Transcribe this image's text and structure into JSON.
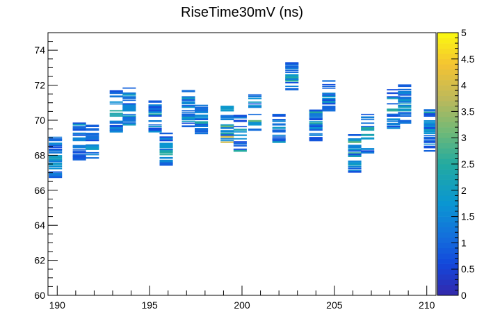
{
  "chart_data": {
    "type": "heatmap",
    "title": "RiseTime30mV (ns)",
    "xlabel": "",
    "ylabel": "",
    "xlim": [
      189.5,
      210.5
    ],
    "ylim": [
      60,
      75
    ],
    "x_ticks": [
      "190",
      "195",
      "200",
      "205",
      "210"
    ],
    "y_ticks": [
      "60",
      "62",
      "64",
      "66",
      "68",
      "70",
      "72",
      "74"
    ],
    "colorbar": {
      "zlim": [
        0,
        5
      ],
      "ticks": [
        "0",
        "0.5",
        "1",
        "1.5",
        "2",
        "2.5",
        "3",
        "3.5",
        "4",
        "4.5",
        "5"
      ]
    },
    "columns": [
      {
        "x": 189.9,
        "y_min": 66.7,
        "y_max": 69.0,
        "z_max": 2.5
      },
      {
        "x": 191.2,
        "y_min": 67.7,
        "y_max": 69.9,
        "z_max": 2.0
      },
      {
        "x": 191.9,
        "y_min": 67.8,
        "y_max": 69.6,
        "z_max": 2.5
      },
      {
        "x": 193.2,
        "y_min": 69.3,
        "y_max": 71.6,
        "z_max": 3.0
      },
      {
        "x": 193.9,
        "y_min": 69.7,
        "y_max": 71.8,
        "z_max": 2.0
      },
      {
        "x": 195.3,
        "y_min": 68.8,
        "y_max": 71.0,
        "z_max": 2.5
      },
      {
        "x": 195.9,
        "y_min": 67.4,
        "y_max": 69.2,
        "z_max": 2.5
      },
      {
        "x": 197.1,
        "y_min": 69.6,
        "y_max": 71.6,
        "z_max": 2.0
      },
      {
        "x": 197.8,
        "y_min": 69.0,
        "y_max": 70.8,
        "z_max": 2.5
      },
      {
        "x": 199.2,
        "y_min": 68.7,
        "y_max": 70.7,
        "z_max": 4.0
      },
      {
        "x": 199.9,
        "y_min": 68.2,
        "y_max": 70.3,
        "z_max": 2.5
      },
      {
        "x": 200.7,
        "y_min": 69.4,
        "y_max": 71.4,
        "z_max": 3.0
      },
      {
        "x": 202.0,
        "y_min": 68.6,
        "y_max": 70.5,
        "z_max": 2.0
      },
      {
        "x": 202.7,
        "y_min": 71.5,
        "y_max": 73.2,
        "z_max": 2.5
      },
      {
        "x": 204.0,
        "y_min": 68.7,
        "y_max": 70.5,
        "z_max": 2.5
      },
      {
        "x": 204.7,
        "y_min": 70.4,
        "y_max": 72.2,
        "z_max": 2.0
      },
      {
        "x": 206.1,
        "y_min": 67.0,
        "y_max": 69.2,
        "z_max": 3.0
      },
      {
        "x": 206.8,
        "y_min": 68.1,
        "y_max": 70.3,
        "z_max": 2.5
      },
      {
        "x": 208.2,
        "y_min": 69.5,
        "y_max": 71.8,
        "z_max": 3.0
      },
      {
        "x": 208.8,
        "y_min": 69.8,
        "y_max": 72.1,
        "z_max": 2.5
      },
      {
        "x": 210.2,
        "y_min": 68.2,
        "y_max": 70.5,
        "z_max": 2.5
      }
    ]
  }
}
